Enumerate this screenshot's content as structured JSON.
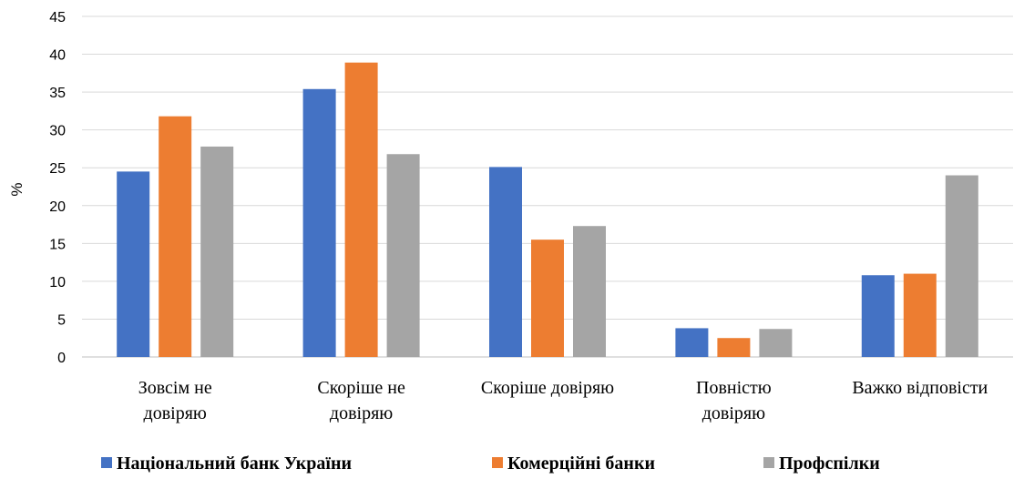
{
  "chart_data": {
    "type": "bar",
    "title": "",
    "xlabel": "",
    "ylabel": "%",
    "ylim": [
      0,
      45
    ],
    "yticks": [
      0,
      5,
      10,
      15,
      20,
      25,
      30,
      35,
      40,
      45
    ],
    "grid": true,
    "legend_position": "bottom",
    "categories": [
      [
        "Зовсім не",
        "довіряю"
      ],
      [
        "Скоріше не",
        "довіряю"
      ],
      [
        "Скоріше довіряю"
      ],
      [
        "Повністю",
        "довіряю"
      ],
      [
        "Важко відповісти"
      ]
    ],
    "series": [
      {
        "name": "Національний банк України",
        "color": "#4472C4",
        "values": [
          24.5,
          35.4,
          25.1,
          3.8,
          10.8
        ]
      },
      {
        "name": "Комерційні банки",
        "color": "#ED7D31",
        "values": [
          31.8,
          38.9,
          15.5,
          2.5,
          11.0
        ]
      },
      {
        "name": "Профспілки",
        "color": "#A5A5A5",
        "values": [
          27.8,
          26.8,
          17.3,
          3.7,
          24.0
        ]
      }
    ]
  }
}
